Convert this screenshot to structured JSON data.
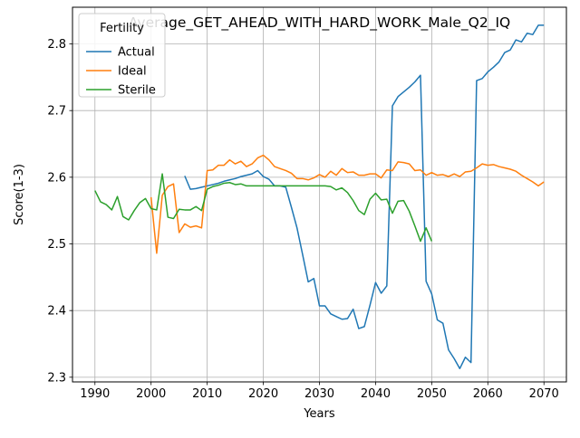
{
  "chart_data": {
    "type": "line",
    "title": "Average_GET_AHEAD_WITH_HARD_WORK_Male_Q2_IQ",
    "xlabel": "Years",
    "ylabel": "Score(1-3)",
    "xlim": [
      1986,
      2074
    ],
    "ylim": [
      2.293,
      2.855
    ],
    "xticks": [
      1990,
      2000,
      2010,
      2020,
      2030,
      2040,
      2050,
      2060,
      2070
    ],
    "yticks": [
      2.3,
      2.4,
      2.5,
      2.6,
      2.7,
      2.8
    ],
    "grid": true,
    "legend": {
      "title": "Fertility",
      "placement": "upper left"
    },
    "series": [
      {
        "name": "Actual",
        "color": "#1f77b4",
        "points": [
          [
            2006,
            2.602
          ],
          [
            2007,
            2.582
          ],
          [
            2008,
            2.583
          ],
          [
            2009,
            2.585
          ],
          [
            2010,
            2.587
          ],
          [
            2011,
            2.589
          ],
          [
            2012,
            2.591
          ],
          [
            2013,
            2.594
          ],
          [
            2014,
            2.596
          ],
          [
            2015,
            2.598
          ],
          [
            2016,
            2.601
          ],
          [
            2017,
            2.603
          ],
          [
            2018,
            2.605
          ],
          [
            2019,
            2.61
          ],
          [
            2020,
            2.601
          ],
          [
            2021,
            2.597
          ],
          [
            2022,
            2.587
          ],
          [
            2023,
            2.587
          ],
          [
            2024,
            2.585
          ],
          [
            2025,
            2.555
          ],
          [
            2026,
            2.524
          ],
          [
            2027,
            2.484
          ],
          [
            2028,
            2.443
          ],
          [
            2029,
            2.448
          ],
          [
            2030,
            2.407
          ],
          [
            2031,
            2.407
          ],
          [
            2032,
            2.395
          ],
          [
            2033,
            2.391
          ],
          [
            2034,
            2.387
          ],
          [
            2035,
            2.388
          ],
          [
            2036,
            2.402
          ],
          [
            2037,
            2.373
          ],
          [
            2038,
            2.376
          ],
          [
            2039,
            2.408
          ],
          [
            2040,
            2.442
          ],
          [
            2041,
            2.426
          ],
          [
            2042,
            2.437
          ],
          [
            2043,
            2.707
          ],
          [
            2044,
            2.721
          ],
          [
            2045,
            2.728
          ],
          [
            2046,
            2.735
          ],
          [
            2047,
            2.743
          ],
          [
            2048,
            2.753
          ],
          [
            2049,
            2.444
          ],
          [
            2050,
            2.425
          ],
          [
            2051,
            2.386
          ],
          [
            2052,
            2.381
          ],
          [
            2053,
            2.341
          ],
          [
            2054,
            2.328
          ],
          [
            2055,
            2.313
          ],
          [
            2056,
            2.33
          ],
          [
            2057,
            2.322
          ],
          [
            2058,
            2.745
          ],
          [
            2059,
            2.748
          ],
          [
            2060,
            2.758
          ],
          [
            2061,
            2.765
          ],
          [
            2062,
            2.773
          ],
          [
            2063,
            2.787
          ],
          [
            2064,
            2.791
          ],
          [
            2065,
            2.806
          ],
          [
            2066,
            2.803
          ],
          [
            2067,
            2.816
          ],
          [
            2068,
            2.814
          ],
          [
            2069,
            2.828
          ],
          [
            2070,
            2.828
          ]
        ]
      },
      {
        "name": "Ideal",
        "color": "#ff7f0e",
        "points": [
          [
            2000,
            2.57
          ],
          [
            2001,
            2.486
          ],
          [
            2002,
            2.573
          ],
          [
            2003,
            2.586
          ],
          [
            2004,
            2.59
          ],
          [
            2005,
            2.517
          ],
          [
            2006,
            2.53
          ],
          [
            2007,
            2.525
          ],
          [
            2008,
            2.527
          ],
          [
            2009,
            2.524
          ],
          [
            2010,
            2.61
          ],
          [
            2011,
            2.611
          ],
          [
            2012,
            2.618
          ],
          [
            2013,
            2.618
          ],
          [
            2014,
            2.626
          ],
          [
            2015,
            2.62
          ],
          [
            2016,
            2.624
          ],
          [
            2017,
            2.616
          ],
          [
            2018,
            2.62
          ],
          [
            2019,
            2.629
          ],
          [
            2020,
            2.633
          ],
          [
            2021,
            2.626
          ],
          [
            2022,
            2.616
          ],
          [
            2023,
            2.613
          ],
          [
            2024,
            2.61
          ],
          [
            2025,
            2.606
          ],
          [
            2026,
            2.598
          ],
          [
            2027,
            2.598
          ],
          [
            2028,
            2.596
          ],
          [
            2029,
            2.599
          ],
          [
            2030,
            2.604
          ],
          [
            2031,
            2.6
          ],
          [
            2032,
            2.609
          ],
          [
            2033,
            2.603
          ],
          [
            2034,
            2.613
          ],
          [
            2035,
            2.607
          ],
          [
            2036,
            2.608
          ],
          [
            2037,
            2.603
          ],
          [
            2038,
            2.603
          ],
          [
            2039,
            2.605
          ],
          [
            2040,
            2.605
          ],
          [
            2041,
            2.599
          ],
          [
            2042,
            2.611
          ],
          [
            2043,
            2.61
          ],
          [
            2044,
            2.623
          ],
          [
            2045,
            2.622
          ],
          [
            2046,
            2.62
          ],
          [
            2047,
            2.61
          ],
          [
            2048,
            2.611
          ],
          [
            2049,
            2.603
          ],
          [
            2050,
            2.607
          ],
          [
            2051,
            2.603
          ],
          [
            2052,
            2.604
          ],
          [
            2053,
            2.601
          ],
          [
            2054,
            2.605
          ],
          [
            2055,
            2.601
          ],
          [
            2056,
            2.608
          ],
          [
            2057,
            2.609
          ],
          [
            2058,
            2.614
          ],
          [
            2059,
            2.62
          ],
          [
            2060,
            2.618
          ],
          [
            2061,
            2.619
          ],
          [
            2062,
            2.616
          ],
          [
            2063,
            2.614
          ],
          [
            2064,
            2.612
          ],
          [
            2065,
            2.609
          ],
          [
            2066,
            2.603
          ],
          [
            2067,
            2.598
          ],
          [
            2068,
            2.593
          ],
          [
            2069,
            2.587
          ],
          [
            2070,
            2.593
          ]
        ]
      },
      {
        "name": "Sterile",
        "color": "#2ca02c",
        "points": [
          [
            1990,
            2.58
          ],
          [
            1991,
            2.563
          ],
          [
            1992,
            2.559
          ],
          [
            1993,
            2.551
          ],
          [
            1994,
            2.571
          ],
          [
            1995,
            2.541
          ],
          [
            1996,
            2.536
          ],
          [
            1997,
            2.55
          ],
          [
            1998,
            2.562
          ],
          [
            1999,
            2.568
          ],
          [
            2000,
            2.553
          ],
          [
            2001,
            2.551
          ],
          [
            2002,
            2.605
          ],
          [
            2003,
            2.54
          ],
          [
            2004,
            2.538
          ],
          [
            2005,
            2.552
          ],
          [
            2006,
            2.551
          ],
          [
            2007,
            2.551
          ],
          [
            2008,
            2.556
          ],
          [
            2009,
            2.55
          ],
          [
            2010,
            2.582
          ],
          [
            2011,
            2.586
          ],
          [
            2012,
            2.588
          ],
          [
            2013,
            2.591
          ],
          [
            2014,
            2.592
          ],
          [
            2015,
            2.589
          ],
          [
            2016,
            2.59
          ],
          [
            2017,
            2.587
          ],
          [
            2018,
            2.587
          ],
          [
            2019,
            2.587
          ],
          [
            2020,
            2.587
          ],
          [
            2021,
            2.587
          ],
          [
            2022,
            2.587
          ],
          [
            2023,
            2.587
          ],
          [
            2024,
            2.587
          ],
          [
            2025,
            2.587
          ],
          [
            2026,
            2.587
          ],
          [
            2027,
            2.587
          ],
          [
            2028,
            2.587
          ],
          [
            2029,
            2.587
          ],
          [
            2030,
            2.587
          ],
          [
            2031,
            2.587
          ],
          [
            2032,
            2.586
          ],
          [
            2033,
            2.581
          ],
          [
            2034,
            2.584
          ],
          [
            2035,
            2.577
          ],
          [
            2036,
            2.565
          ],
          [
            2037,
            2.55
          ],
          [
            2038,
            2.544
          ],
          [
            2039,
            2.567
          ],
          [
            2040,
            2.576
          ],
          [
            2041,
            2.566
          ],
          [
            2042,
            2.567
          ],
          [
            2043,
            2.546
          ],
          [
            2044,
            2.564
          ],
          [
            2045,
            2.565
          ],
          [
            2046,
            2.549
          ],
          [
            2047,
            2.527
          ],
          [
            2048,
            2.504
          ],
          [
            2049,
            2.524
          ],
          [
            2050,
            2.504
          ]
        ]
      }
    ]
  }
}
